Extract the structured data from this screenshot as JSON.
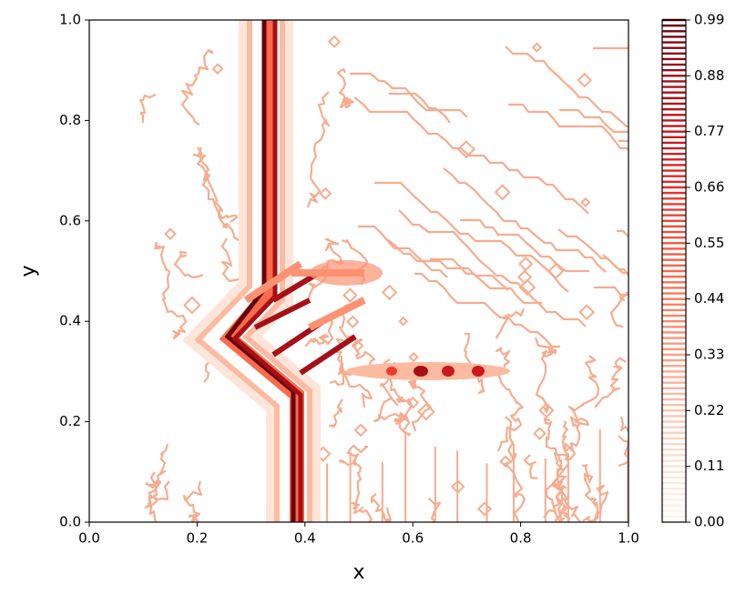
{
  "chart_data": {
    "type": "contour",
    "xlabel": "x",
    "ylabel": "y",
    "xlim": [
      0,
      1
    ],
    "ylim": [
      0,
      1
    ],
    "xticks": [
      {
        "value": 0,
        "label": "0.0"
      },
      {
        "value": 0.2,
        "label": "0.2"
      },
      {
        "value": 0.4,
        "label": "0.4"
      },
      {
        "value": 0.6,
        "label": "0.6"
      },
      {
        "value": 0.8,
        "label": "0.8"
      },
      {
        "value": 1,
        "label": "1.0"
      }
    ],
    "yticks": [
      {
        "value": 0,
        "label": "0.0"
      },
      {
        "value": 0.2,
        "label": "0.2"
      },
      {
        "value": 0.4,
        "label": "0.4"
      },
      {
        "value": 0.6,
        "label": "0.6"
      },
      {
        "value": 0.8,
        "label": "0.8"
      },
      {
        "value": 1,
        "label": "1.0"
      }
    ],
    "colorbar": {
      "colormap": "Reds",
      "lim": [
        0,
        0.99
      ],
      "ticks": [
        {
          "value": 0,
          "label": "0.00"
        },
        0.11,
        0.22,
        0.33,
        0.44,
        0.55,
        0.66,
        0.77,
        0.88,
        0.99
      ]
    }
  }
}
